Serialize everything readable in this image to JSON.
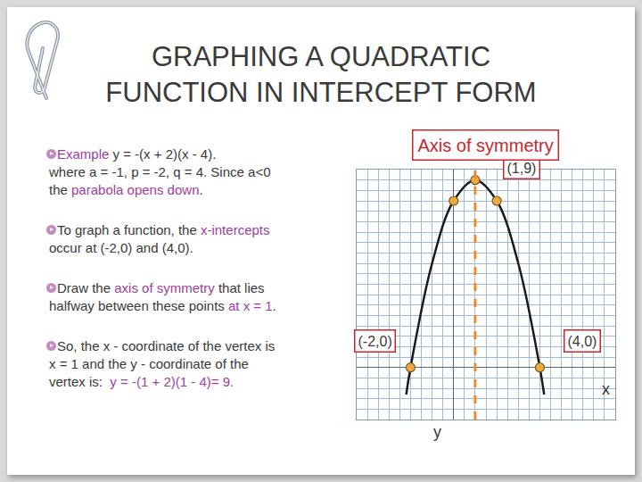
{
  "title": [
    "GRAPHING A QUADRATIC",
    "FUNCTION IN INTERCEPT FORM"
  ],
  "bullets": [
    [
      [
        {
          "text": "Example",
          "highlight": true
        },
        {
          "text": " y = -(x + 2)(x - 4)."
        }
      ],
      [
        {
          "text": "where a = -1, p = -2, q = 4. Since a<0"
        }
      ],
      [
        {
          "text": "the "
        },
        {
          "text": "parabola opens down",
          "highlight": true
        },
        {
          "text": "."
        }
      ]
    ],
    [
      [
        {
          "text": "To graph a function, the "
        },
        {
          "text": "x-intercepts",
          "highlight": true
        }
      ],
      [
        {
          "text": "occur at (-2,0) and (4,0)."
        }
      ]
    ],
    [
      [
        {
          "text": "Draw the "
        },
        {
          "text": "axis of symmetry",
          "highlight": true
        },
        {
          "text": " that lies"
        }
      ],
      [
        {
          "text": "halfway between these points "
        },
        {
          "text": "at x = 1",
          "highlight": true
        },
        {
          "text": "."
        }
      ]
    ],
    [
      [
        {
          "text": "So, the x - coordinate of the vertex is"
        }
      ],
      [
        {
          "text": "x = 1 and the y - coordinate of the"
        }
      ],
      [
        {
          "text": "vertex is:  "
        },
        {
          "text": "y = -(1 + 2)(1 - 4)= 9.",
          "highlight": true
        }
      ]
    ]
  ],
  "chart_data": {
    "type": "line",
    "x_label": "x",
    "y_label": "y",
    "xlim": [
      -4.5,
      7.5
    ],
    "ylim": [
      -2.5,
      9.5
    ],
    "xticks": [
      -4.5,
      -4,
      -3.5,
      -3,
      -2.5,
      -2,
      -1.5,
      -1,
      -0.5,
      0,
      0.5,
      1,
      1.5,
      2,
      2.5,
      3,
      3.5,
      4,
      4.5,
      5,
      5.5,
      6,
      6.5,
      7,
      7.5
    ],
    "yticks": [
      -2.5,
      -2,
      -1.5,
      -1,
      -0.5,
      0,
      0.5,
      1,
      1.5,
      2,
      2.5,
      3,
      3.5,
      4,
      4.5,
      5,
      5.5,
      6,
      6.5,
      7,
      7.5,
      8,
      8.5,
      9,
      9.5
    ],
    "grid": true,
    "tick_labels": false,
    "series": [
      {
        "x": [
          -2.2,
          -2,
          -1,
          0,
          1,
          2,
          3,
          4,
          4.2
        ],
        "values": [
          -1.3,
          0,
          5,
          8,
          9,
          8,
          5,
          0,
          -1.3
        ],
        "color": "#1a1a1a",
        "line_style": "solid"
      }
    ],
    "points": {
      "x": [
        -2,
        0,
        1,
        2,
        4
      ],
      "values": [
        0,
        8,
        9,
        8,
        0
      ],
      "color": "#f2a93b",
      "marker": "circle"
    },
    "axis_of_symmetry": {
      "x": 1,
      "color": "#f0892a",
      "line_style": "dashed",
      "label": "Axis of symmetry"
    },
    "annotations": [
      {
        "text": "(1,9)",
        "x": 1,
        "y": 9
      },
      {
        "text": "(-2,0)",
        "x": -2,
        "y": 0
      },
      {
        "text": "(4,0)",
        "x": 4,
        "y": 0
      }
    ]
  }
}
